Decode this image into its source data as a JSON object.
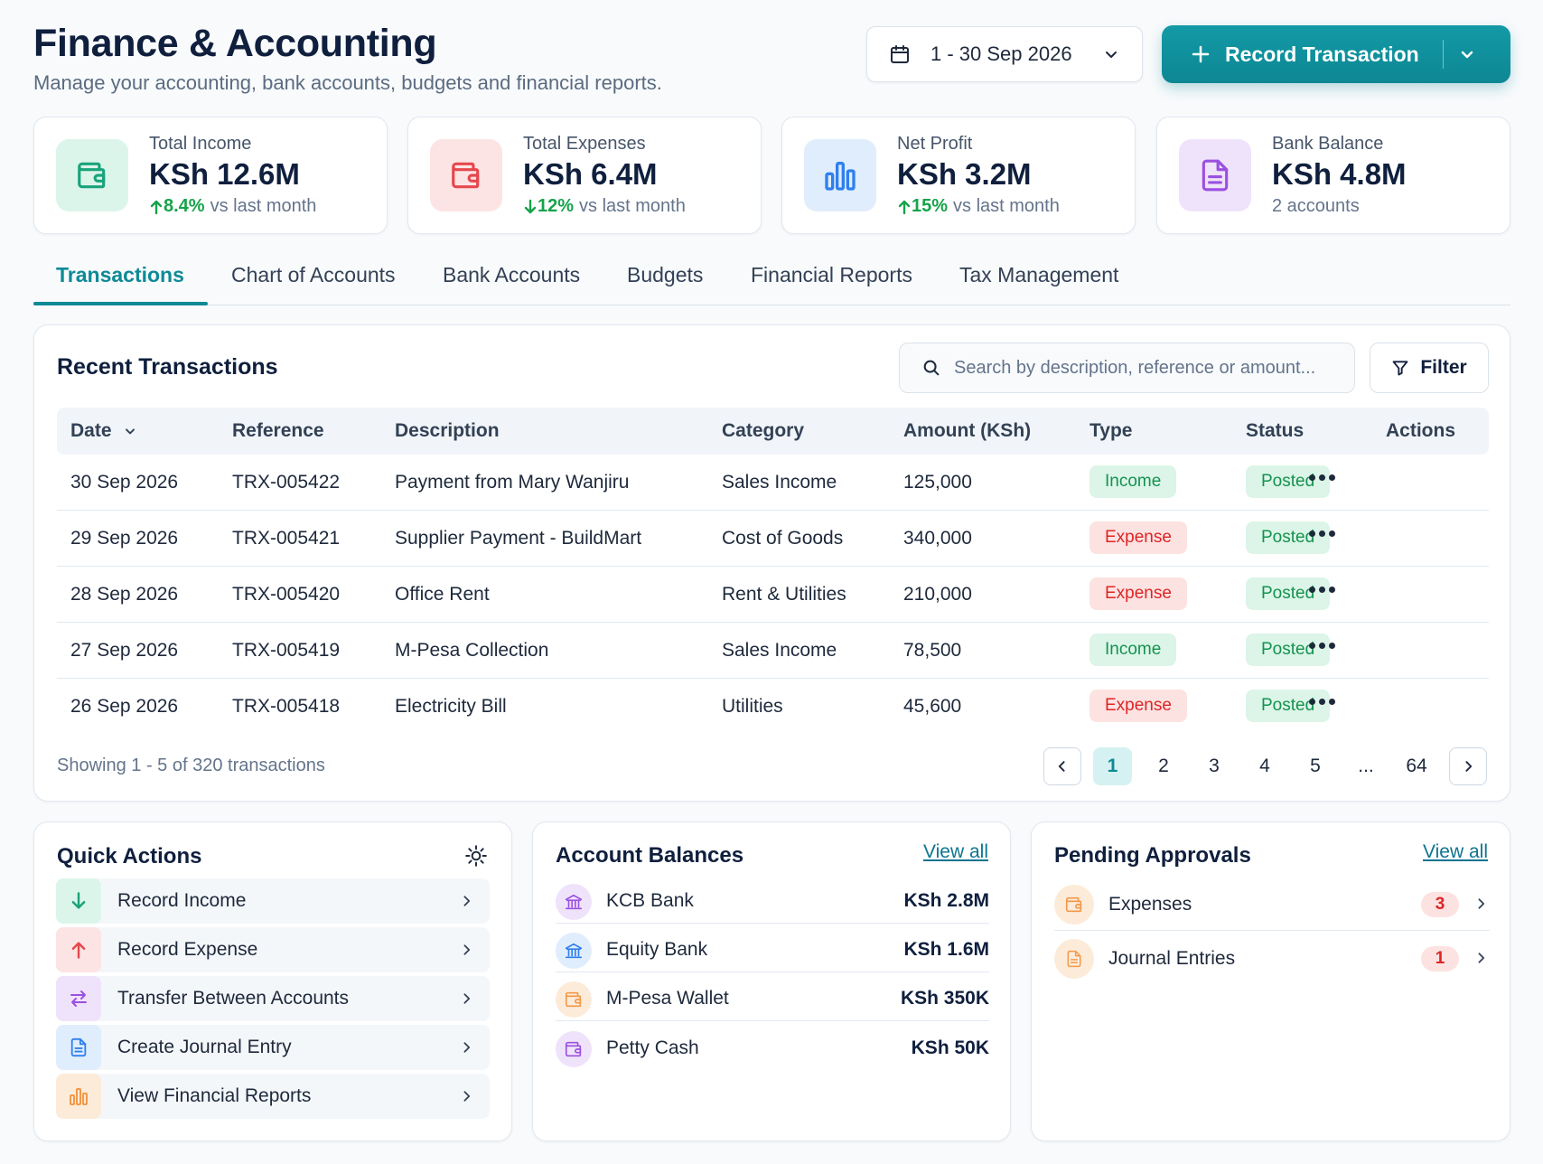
{
  "header": {
    "title": "Finance & Accounting",
    "subtitle": "Manage your accounting, bank accounts, budgets and financial reports.",
    "date_range": "1 - 30 Sep 2026",
    "record_button": "Record Transaction"
  },
  "kpis": [
    {
      "label": "Total Income",
      "value": "KSh 12.6M",
      "change": "8.4%",
      "change_direction": "up",
      "suffix": "vs last month",
      "icon": "wallet-icon",
      "color": "#1aa37a"
    },
    {
      "label": "Total Expenses",
      "value": "KSh 6.4M",
      "change": "12%",
      "change_direction": "down",
      "suffix": "vs last month",
      "icon": "wallet-icon",
      "color": "#e5484d"
    },
    {
      "label": "Net Profit",
      "value": "KSh 3.2M",
      "change": "15%",
      "change_direction": "up",
      "suffix": "vs last month",
      "icon": "bar-chart-icon",
      "color": "#2f80ed"
    },
    {
      "label": "Bank Balance",
      "value": "KSh 4.8M",
      "change": "",
      "suffix": "2 accounts",
      "icon": "document-icon",
      "color": "#9b51e0"
    }
  ],
  "tabs": [
    "Transactions",
    "Chart of Accounts",
    "Bank Accounts",
    "Budgets",
    "Financial Reports",
    "Tax Management"
  ],
  "active_tab": "Transactions",
  "transactions": {
    "title": "Recent Transactions",
    "search_placeholder": "Search by description, reference or amount...",
    "filter_label": "Filter",
    "columns": [
      "Date",
      "Reference",
      "Description",
      "Category",
      "Amount (KSh)",
      "Type",
      "Status",
      "Actions"
    ],
    "rows": [
      {
        "date": "30 Sep 2026",
        "reference": "TRX-005422",
        "description": "Payment from Mary Wanjiru",
        "category": "Sales Income",
        "amount": "125,000",
        "type": "Income",
        "status": "Posted"
      },
      {
        "date": "29 Sep 2026",
        "reference": "TRX-005421",
        "description": "Supplier Payment - BuildMart",
        "category": "Cost of Goods",
        "amount": "340,000",
        "type": "Expense",
        "status": "Posted"
      },
      {
        "date": "28 Sep 2026",
        "reference": "TRX-005420",
        "description": "Office Rent",
        "category": "Rent & Utilities",
        "amount": "210,000",
        "type": "Expense",
        "status": "Posted"
      },
      {
        "date": "27 Sep 2026",
        "reference": "TRX-005419",
        "description": "M-Pesa Collection",
        "category": "Sales Income",
        "amount": "78,500",
        "type": "Income",
        "status": "Posted"
      },
      {
        "date": "26 Sep 2026",
        "reference": "TRX-005418",
        "description": "Electricity Bill",
        "category": "Utilities",
        "amount": "45,600",
        "type": "Expense",
        "status": "Posted"
      }
    ],
    "showing_text": "Showing 1 - 5 of 320 transactions",
    "pagination": [
      "1",
      "2",
      "3",
      "4",
      "5",
      "...",
      "64"
    ],
    "current_page": "1"
  },
  "quick_actions": {
    "title": "Quick Actions",
    "items": [
      {
        "label": "Record Income",
        "icon": "arrow-down-icon",
        "color": "#1aa37a"
      },
      {
        "label": "Record Expense",
        "icon": "arrow-up-icon",
        "color": "#e5484d"
      },
      {
        "label": "Transfer Between Accounts",
        "icon": "transfer-icon",
        "color": "#9b51e0"
      },
      {
        "label": "Create Journal Entry",
        "icon": "document-icon",
        "color": "#2f80ed"
      },
      {
        "label": "View Financial Reports",
        "icon": "bar-chart-icon",
        "color": "#f2994a"
      }
    ]
  },
  "account_balances": {
    "title": "Account Balances",
    "view_all": "View all",
    "items": [
      {
        "name": "KCB Bank",
        "value": "KSh 2.8M",
        "icon": "bank-icon",
        "color": "#9b51e0"
      },
      {
        "name": "Equity Bank",
        "value": "KSh 1.6M",
        "icon": "bank-icon",
        "color": "#2f80ed"
      },
      {
        "name": "M-Pesa Wallet",
        "value": "KSh 350K",
        "icon": "wallet-icon",
        "color": "#f2994a"
      },
      {
        "name": "Petty Cash",
        "value": "KSh 50K",
        "icon": "wallet-icon",
        "color": "#9b51e0"
      }
    ]
  },
  "pending_approvals": {
    "title": "Pending Approvals",
    "view_all": "View all",
    "items": [
      {
        "label": "Expenses",
        "count": "3",
        "icon": "wallet-icon",
        "color": "#f2994a"
      },
      {
        "label": "Journal Entries",
        "count": "1",
        "icon": "document-icon",
        "color": "#f2994a"
      }
    ]
  }
}
